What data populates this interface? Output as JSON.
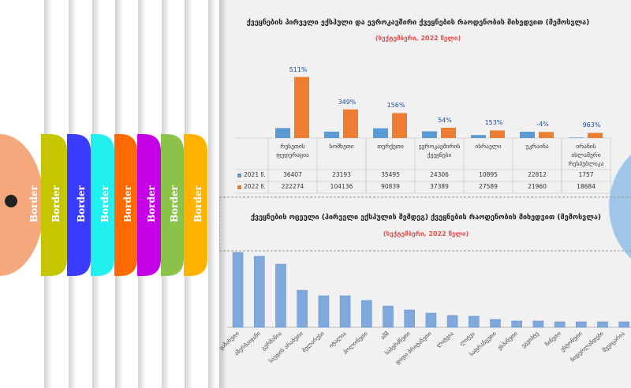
{
  "tabs": [
    "Border",
    "Border",
    "Border",
    "Border",
    "Border",
    "Border",
    "Border",
    "Border"
  ],
  "chart_data": [
    {
      "type": "bar",
      "title": "ქვეყნების პირველი ექსპული და ევროკავშირი ქვეყნების რაოდენობის მიხედვით (მემოსვლა)",
      "subtitle": "(სექტემბერი, 2022 წელი)",
      "categories": [
        "რუსეთის ფედერაცია",
        "სომხეთი",
        "თურქეთი",
        "ევროკავშირის ქვეყნები",
        "ისრაელი",
        "უკრაინა",
        "ირანის ისლამური რესპუბლიკა"
      ],
      "series": [
        {
          "name": "2021 წ.",
          "color": "#5b9bd5",
          "values": [
            36407,
            23193,
            35495,
            24306,
            10895,
            22812,
            1757
          ]
        },
        {
          "name": "2022 წ.",
          "color": "#ed7d31",
          "values": [
            222274,
            104136,
            90839,
            37389,
            27589,
            21960,
            18684
          ]
        }
      ],
      "growth": {
        "values": [
          511,
          349,
          156,
          54,
          153,
          -4,
          963
        ],
        "value_labels": [
          "511%",
          "349%",
          "156%",
          "54%",
          "153%",
          "-4%",
          "963%"
        ]
      },
      "ylim": [
        0,
        250000
      ]
    },
    {
      "type": "bar",
      "title": "ქვეყნების ოცეული (პირველი ექსპულის შემდეგ) ქვეყნების რაოდენობის მიხედვით (მემოსვლა)",
      "subtitle": "(სექტემბერი, 2022 წელი)",
      "categories": [
        "ყაზახეთი",
        "აზერბაიჯანი",
        "გერმანია",
        "საუდის არაბეთი",
        "ბელარუსი",
        "იტალია",
        "პოლონეთი",
        "აშშ",
        "საბერძნეთი",
        "დიდი ბრიტანეთი",
        "ლატვია",
        "ლიტვა",
        "საფრანგეთი",
        "ესპანეთი",
        "ეგვიპტე",
        "ჩინეთი",
        "ესტონეთი",
        "ნიდერლანდები",
        "შვეიცარია"
      ],
      "values": [
        95,
        90,
        80,
        47,
        40,
        40,
        34,
        27,
        22,
        18,
        15,
        14,
        10,
        8,
        8,
        7,
        7,
        7,
        7
      ],
      "color": "#7fa9dc",
      "ylim": [
        0,
        100
      ]
    }
  ]
}
